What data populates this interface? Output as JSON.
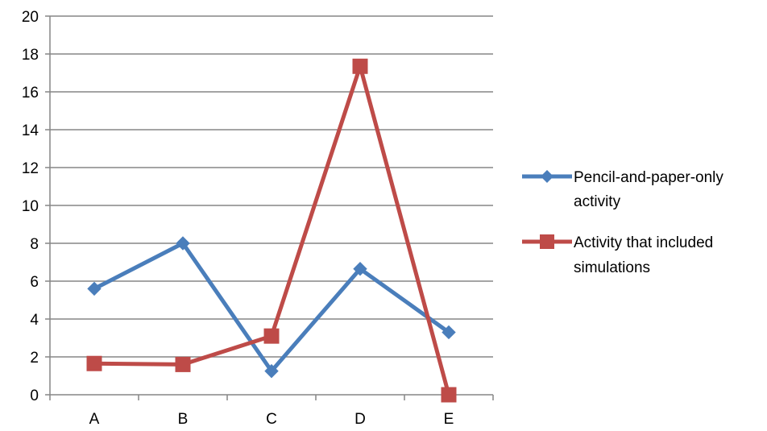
{
  "chart_data": {
    "type": "line",
    "categories": [
      "A",
      "B",
      "C",
      "D",
      "E"
    ],
    "ylim": [
      0,
      20
    ],
    "yticks": [
      "0",
      "2",
      "4",
      "6",
      "8",
      "10",
      "12",
      "14",
      "16",
      "18",
      "20"
    ],
    "grid": true,
    "legend_position": "right",
    "series": [
      {
        "name_lines": [
          "Pencil-and-paper-only",
          "activity"
        ],
        "values": [
          5.6,
          8.0,
          1.25,
          6.65,
          3.3
        ],
        "color": "#4a7ebb",
        "marker": "diamond"
      },
      {
        "name_lines": [
          "Activity that included",
          "simulations"
        ],
        "values": [
          1.65,
          1.6,
          3.1,
          17.35,
          0.0
        ],
        "color": "#be4b48",
        "marker": "square"
      }
    ]
  }
}
